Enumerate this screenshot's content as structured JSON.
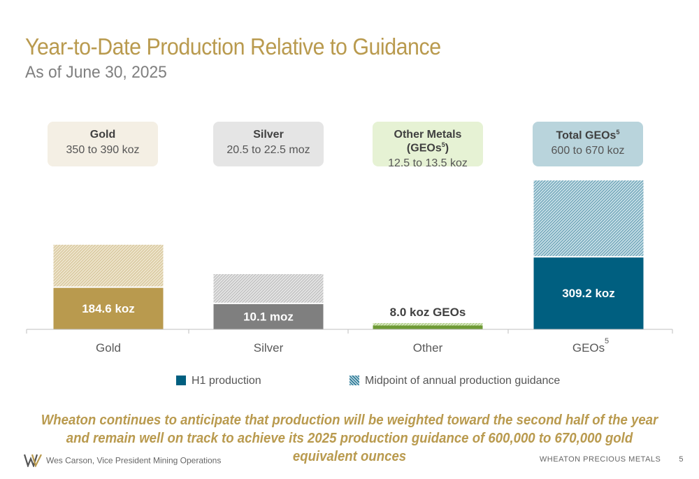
{
  "header": {
    "title": "Year-to-Date Production Relative to Guidance",
    "subtitle": "As of June 30, 2025"
  },
  "guidance_boxes": [
    {
      "name": "Gold",
      "sup": "",
      "name_suffix": "",
      "range": "350 to 390 koz",
      "bg": "#f4efe4"
    },
    {
      "name": "Silver",
      "sup": "",
      "name_suffix": "",
      "range": "20.5 to 22.5 moz",
      "bg": "#e5e5e5"
    },
    {
      "name": "Other Metals (GEOs",
      "sup": "5",
      "name_suffix": ")",
      "range": "12.5 to 13.5 koz",
      "bg": "#e6f2d4"
    },
    {
      "name": "Total GEOs",
      "sup": "5",
      "name_suffix": "",
      "range": "600 to 670 koz",
      "bg": "#b9d4dc"
    }
  ],
  "chart_data": {
    "type": "bar",
    "categories": [
      "Gold",
      "Silver",
      "Other",
      "GEOs"
    ],
    "category_superscripts": [
      "",
      "",
      "",
      "5"
    ],
    "series": [
      {
        "name": "H1 production",
        "values": [
          184.6,
          10.1,
          8.0,
          309.2
        ],
        "labels": [
          "184.6 koz",
          "10.1 moz",
          "8.0 koz GEOs",
          "309.2 koz"
        ]
      },
      {
        "name": "Midpoint of annual production guidance",
        "values": [
          370,
          21.5,
          13.0,
          635
        ]
      }
    ],
    "colors": {
      "h1": [
        "#b99a4e",
        "#7f7f7f",
        "#6e9a35",
        "#005f80"
      ],
      "guidance": [
        "#d9c99b",
        "#c4c4c4",
        "#a9c97c",
        "#4a8fa8"
      ]
    },
    "note": "each category is scaled to its own guidance; stacked bars show H1 production within the annual guidance midpoint"
  },
  "legend": {
    "h1_label": "H1 production",
    "guidance_label": "Midpoint of annual production guidance"
  },
  "note": "Wheaton continues to anticipate that production will be weighted toward the second half of the year and remain well on track to achieve its 2025 production guidance of 600,000 to 670,000 gold equivalent ounces",
  "footer": {
    "presenter": "Wes Carson, Vice President Mining Operations",
    "company": "WHEATON  PRECIOUS METALS",
    "page": "5"
  }
}
